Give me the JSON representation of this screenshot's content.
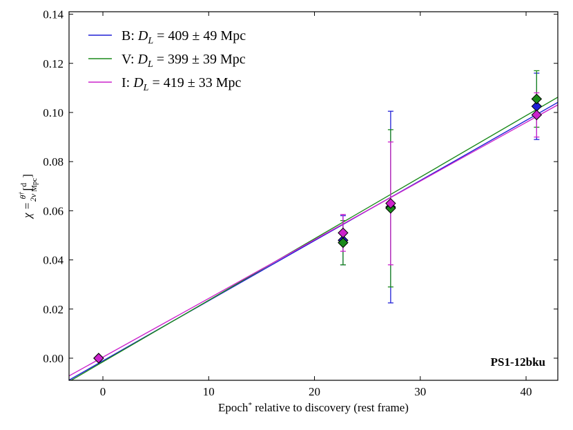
{
  "chart_data": {
    "type": "scatter",
    "xlabel": "Epoch* relative to discovery (rest frame)",
    "ylabel": "χ = θ† / 2v [d / Mpc]",
    "xlim": [
      -3.2,
      43
    ],
    "ylim": [
      -0.009,
      0.141
    ],
    "xticks": [
      0,
      10,
      20,
      30,
      40
    ],
    "yticks": [
      0.0,
      0.02,
      0.04,
      0.06,
      0.08,
      0.1,
      0.12,
      0.14
    ],
    "xtick_labels": [
      "0",
      "10",
      "20",
      "30",
      "40"
    ],
    "ytick_labels": [
      "0.00",
      "0.02",
      "0.04",
      "0.06",
      "0.08",
      "0.10",
      "0.12",
      "0.14"
    ],
    "annotation": "PS1-12bku",
    "legend_position": "top-left",
    "series": [
      {
        "name": "B",
        "label_prefix": "B: ",
        "label_value": " = 409 ± 49 Mpc",
        "color": "#1f1fd6",
        "points": [
          {
            "x": -0.4,
            "y": 0.0,
            "err": 0
          },
          {
            "x": 22.7,
            "y": 0.048,
            "err": 0.01
          },
          {
            "x": 27.2,
            "y": 0.0615,
            "err": 0.039
          },
          {
            "x": 41.0,
            "y": 0.1025,
            "err": 0.0135
          }
        ],
        "fit": {
          "slope": 0.002446,
          "intercept": -0.00108
        }
      },
      {
        "name": "V",
        "label_prefix": "V: ",
        "label_value": " = 399 ± 39 Mpc",
        "color": "#1a8a1a",
        "points": [
          {
            "x": -0.4,
            "y": 0.0,
            "err": 0
          },
          {
            "x": 22.7,
            "y": 0.047,
            "err": 0.009
          },
          {
            "x": 27.2,
            "y": 0.061,
            "err": 0.032
          },
          {
            "x": 41.0,
            "y": 0.1055,
            "err": 0.0115
          }
        ],
        "fit": {
          "slope": 0.002505,
          "intercept": -0.00149
        }
      },
      {
        "name": "I",
        "label_prefix": "I: ",
        "label_value": " = 419 ± 33 Mpc",
        "color": "#cc22cc",
        "points": [
          {
            "x": -0.4,
            "y": 0.0,
            "err": 0
          },
          {
            "x": 22.7,
            "y": 0.051,
            "err": 0.0075
          },
          {
            "x": 27.2,
            "y": 0.063,
            "err": 0.025
          },
          {
            "x": 41.0,
            "y": 0.099,
            "err": 0.009
          }
        ],
        "fit": {
          "slope": 0.002388,
          "intercept": 0.00042
        }
      }
    ]
  }
}
